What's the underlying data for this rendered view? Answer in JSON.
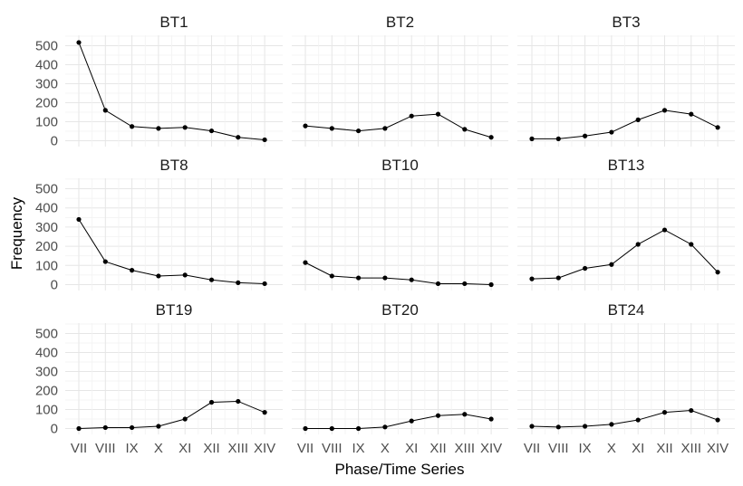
{
  "chart_data": {
    "type": "line",
    "facets": [
      "BT1",
      "BT2",
      "BT3",
      "BT8",
      "BT10",
      "BT13",
      "BT19",
      "BT20",
      "BT24"
    ],
    "categories": [
      "VII",
      "VIII",
      "IX",
      "X",
      "XI",
      "XII",
      "XIII",
      "XIV"
    ],
    "xlabel": "Phase/Time Series",
    "ylabel": "Frequency",
    "ylim": [
      0,
      550
    ],
    "yticks": [
      0,
      100,
      200,
      300,
      400,
      500
    ],
    "grid": true,
    "series": [
      {
        "facet": "BT1",
        "values": [
          517,
          160,
          75,
          65,
          70,
          52,
          18,
          5
        ]
      },
      {
        "facet": "BT2",
        "values": [
          78,
          65,
          52,
          65,
          130,
          140,
          60,
          18
        ]
      },
      {
        "facet": "BT3",
        "values": [
          10,
          10,
          25,
          45,
          110,
          160,
          140,
          70
        ]
      },
      {
        "facet": "BT8",
        "values": [
          340,
          120,
          75,
          45,
          50,
          25,
          10,
          5
        ]
      },
      {
        "facet": "BT10",
        "values": [
          115,
          45,
          35,
          35,
          25,
          5,
          5,
          0
        ]
      },
      {
        "facet": "BT13",
        "values": [
          30,
          35,
          85,
          105,
          210,
          285,
          210,
          65
        ]
      },
      {
        "facet": "BT19",
        "values": [
          0,
          5,
          5,
          12,
          50,
          138,
          143,
          85
        ]
      },
      {
        "facet": "BT20",
        "values": [
          0,
          0,
          0,
          8,
          40,
          68,
          75,
          50
        ]
      },
      {
        "facet": "BT24",
        "values": [
          12,
          8,
          12,
          22,
          45,
          85,
          95,
          45
        ]
      }
    ]
  }
}
